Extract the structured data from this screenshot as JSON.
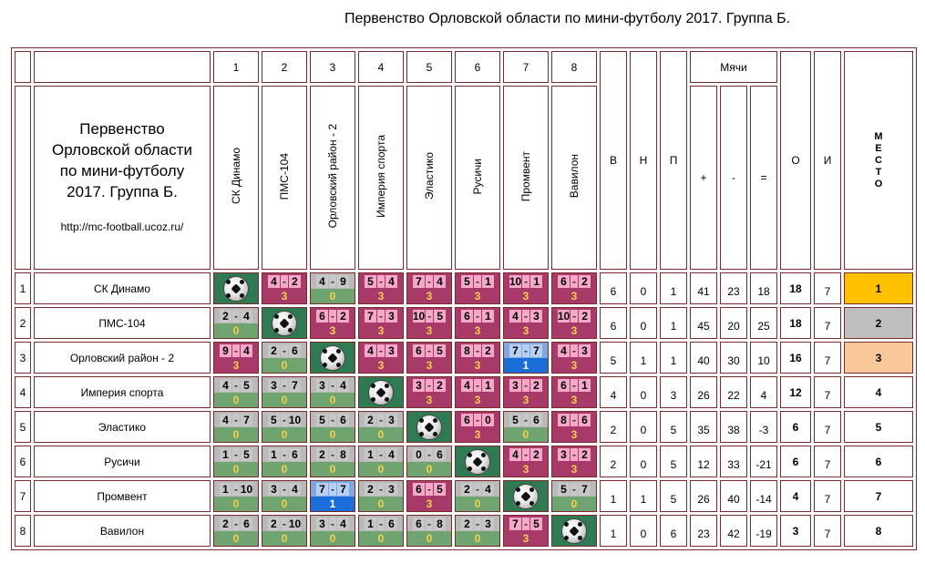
{
  "title": "Первенство Орловской  области по мини-футболу 2017. Группа Б.",
  "header_block": {
    "line1": "Первенство",
    "line2": "Орловской  области",
    "line3": "по мини-футболу",
    "line4": "2017. Группа Б.",
    "url": "http://mc-football.ucoz.ru/"
  },
  "col_numbers": [
    "1",
    "2",
    "3",
    "4",
    "5",
    "6",
    "7",
    "8"
  ],
  "teams": [
    "СК Динамо",
    "ПМС-104",
    "Орловский район - 2",
    "Империя спорта",
    "Эластико",
    "Русичи",
    "Промвент",
    "Вавилон"
  ],
  "stat_headers": {
    "w": "В",
    "d": "Н",
    "l": "П",
    "balls": "Мячи",
    "plus": "+",
    "minus": "-",
    "diff": "=",
    "points": "О",
    "games": "И"
  },
  "place_letters": [
    "М",
    "Е",
    "С",
    "Т",
    "О"
  ],
  "rows": [
    {
      "num": "1",
      "team": "СК Динамо",
      "matches": [
        null,
        [
          "4",
          "2",
          "3"
        ],
        [
          "4",
          "9",
          "0"
        ],
        [
          "5",
          "4",
          "3"
        ],
        [
          "7",
          "4",
          "3"
        ],
        [
          "5",
          "1",
          "3"
        ],
        [
          "10",
          "1",
          "3"
        ],
        [
          "6",
          "2",
          "3"
        ]
      ],
      "w": "6",
      "d": "0",
      "l": "1",
      "gf": "41",
      "ga": "23",
      "diff": "18",
      "pts": "18",
      "games": "7",
      "place": "1"
    },
    {
      "num": "2",
      "team": "ПМС-104",
      "matches": [
        [
          "2",
          "4",
          "0"
        ],
        null,
        [
          "6",
          "2",
          "3"
        ],
        [
          "7",
          "3",
          "3"
        ],
        [
          "10",
          "5",
          "3"
        ],
        [
          "6",
          "1",
          "3"
        ],
        [
          "4",
          "3",
          "3"
        ],
        [
          "10",
          "2",
          "3"
        ]
      ],
      "w": "6",
      "d": "0",
      "l": "1",
      "gf": "45",
      "ga": "20",
      "diff": "25",
      "pts": "18",
      "games": "7",
      "place": "2"
    },
    {
      "num": "3",
      "team": "Орловский район - 2",
      "matches": [
        [
          "9",
          "4",
          "3"
        ],
        [
          "2",
          "6",
          "0"
        ],
        null,
        [
          "4",
          "3",
          "3"
        ],
        [
          "6",
          "5",
          "3"
        ],
        [
          "8",
          "2",
          "3"
        ],
        [
          "7",
          "7",
          "1"
        ],
        [
          "4",
          "3",
          "3"
        ]
      ],
      "w": "5",
      "d": "1",
      "l": "1",
      "gf": "40",
      "ga": "30",
      "diff": "10",
      "pts": "16",
      "games": "7",
      "place": "3"
    },
    {
      "num": "4",
      "team": "Империя спорта",
      "matches": [
        [
          "4",
          "5",
          "0"
        ],
        [
          "3",
          "7",
          "0"
        ],
        [
          "3",
          "4",
          "0"
        ],
        null,
        [
          "3",
          "2",
          "3"
        ],
        [
          "4",
          "1",
          "3"
        ],
        [
          "3",
          "2",
          "3"
        ],
        [
          "6",
          "1",
          "3"
        ]
      ],
      "w": "4",
      "d": "0",
      "l": "3",
      "gf": "26",
      "ga": "22",
      "diff": "4",
      "pts": "12",
      "games": "7",
      "place": "4"
    },
    {
      "num": "5",
      "team": "Эластико",
      "matches": [
        [
          "4",
          "7",
          "0"
        ],
        [
          "5",
          "10",
          "0"
        ],
        [
          "5",
          "6",
          "0"
        ],
        [
          "2",
          "3",
          "0"
        ],
        null,
        [
          "6",
          "0",
          "3"
        ],
        [
          "5",
          "6",
          "0"
        ],
        [
          "8",
          "6",
          "3"
        ]
      ],
      "w": "2",
      "d": "0",
      "l": "5",
      "gf": "35",
      "ga": "38",
      "diff": "-3",
      "pts": "6",
      "games": "7",
      "place": "5"
    },
    {
      "num": "6",
      "team": "Русичи",
      "matches": [
        [
          "1",
          "5",
          "0"
        ],
        [
          "1",
          "6",
          "0"
        ],
        [
          "2",
          "8",
          "0"
        ],
        [
          "1",
          "4",
          "0"
        ],
        [
          "0",
          "6",
          "0"
        ],
        null,
        [
          "4",
          "2",
          "3"
        ],
        [
          "3",
          "2",
          "3"
        ]
      ],
      "w": "2",
      "d": "0",
      "l": "5",
      "gf": "12",
      "ga": "33",
      "diff": "-21",
      "pts": "6",
      "games": "7",
      "place": "6"
    },
    {
      "num": "7",
      "team": "Промвент",
      "matches": [
        [
          "1",
          "10",
          "0"
        ],
        [
          "3",
          "4",
          "0"
        ],
        [
          "7",
          "7",
          "1"
        ],
        [
          "2",
          "3",
          "0"
        ],
        [
          "6",
          "5",
          "3"
        ],
        [
          "2",
          "4",
          "0"
        ],
        null,
        [
          "5",
          "7",
          "0"
        ]
      ],
      "w": "1",
      "d": "1",
      "l": "5",
      "gf": "26",
      "ga": "40",
      "diff": "-14",
      "pts": "4",
      "games": "7",
      "place": "7"
    },
    {
      "num": "8",
      "team": "Вавилон",
      "matches": [
        [
          "2",
          "6",
          "0"
        ],
        [
          "2",
          "10",
          "0"
        ],
        [
          "3",
          "4",
          "0"
        ],
        [
          "1",
          "6",
          "0"
        ],
        [
          "6",
          "8",
          "0"
        ],
        [
          "2",
          "3",
          "0"
        ],
        [
          "7",
          "5",
          "3"
        ],
        null
      ],
      "w": "1",
      "d": "0",
      "l": "6",
      "gf": "23",
      "ga": "42",
      "diff": "-19",
      "pts": "3",
      "games": "7",
      "place": "8"
    }
  ],
  "colors": {
    "win": "#a83a6a",
    "loss": "#6fa36f",
    "draw": "#1a6ed8",
    "gold": "#ffc000",
    "silver": "#bfbfbf",
    "bronze": "#f8c89a"
  }
}
